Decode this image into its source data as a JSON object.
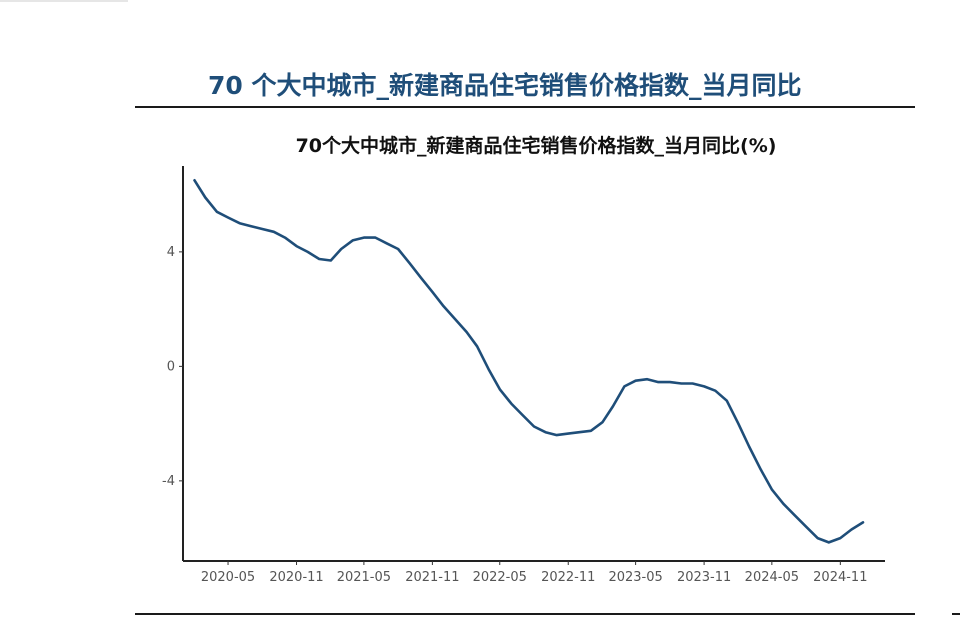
{
  "header": {
    "title": "70 个大中城市_新建商品住宅销售价格指数_当月同比"
  },
  "chart_data": {
    "type": "line",
    "title": "70个大中城市_新建商品住宅销售价格指数_当月同比(%)",
    "xlabel": "",
    "ylabel": "",
    "x_tick_labels": [
      "2020-05",
      "2020-11",
      "2021-05",
      "2021-11",
      "2022-05",
      "2022-11",
      "2023-05",
      "2023-11",
      "2024-05",
      "2024-11"
    ],
    "y_ticks": [
      -4,
      0,
      4
    ],
    "ylim": [
      -6.8,
      7.0
    ],
    "grid": false,
    "legend": "none",
    "color": "#1f4e79",
    "series": [
      {
        "x": [
          "2020-02",
          "2020-03",
          "2020-04",
          "2020-05",
          "2020-06",
          "2020-07",
          "2020-08",
          "2020-09",
          "2020-10",
          "2020-11",
          "2020-12",
          "2021-01",
          "2021-02",
          "2021-03",
          "2021-04",
          "2021-05",
          "2021-06",
          "2021-07",
          "2021-08",
          "2021-09",
          "2021-10",
          "2021-11",
          "2021-12",
          "2022-01",
          "2022-02",
          "2022-03",
          "2022-04",
          "2022-05",
          "2022-06",
          "2022-07",
          "2022-08",
          "2022-09",
          "2022-10",
          "2022-11",
          "2022-12",
          "2023-01",
          "2023-02",
          "2023-03",
          "2023-04",
          "2023-05",
          "2023-06",
          "2023-07",
          "2023-08",
          "2023-09",
          "2023-10",
          "2023-11",
          "2023-12",
          "2024-01",
          "2024-02",
          "2024-03",
          "2024-04",
          "2024-05",
          "2024-06",
          "2024-07",
          "2024-08",
          "2024-09",
          "2024-10",
          "2024-11",
          "2024-12",
          "2025-01"
        ],
        "values": [
          6.5,
          5.9,
          5.4,
          5.2,
          5.0,
          4.9,
          4.8,
          4.7,
          4.5,
          4.2,
          4.0,
          3.75,
          3.7,
          4.1,
          4.4,
          4.5,
          4.5,
          4.3,
          4.1,
          3.6,
          3.1,
          2.6,
          2.1,
          1.65,
          1.2,
          0.7,
          -0.1,
          -0.8,
          -1.3,
          -1.7,
          -2.1,
          -2.3,
          -2.4,
          -2.35,
          -2.3,
          -2.25,
          -1.95,
          -1.4,
          -0.7,
          -0.5,
          -0.45,
          -0.55,
          -0.55,
          -0.6,
          -0.6,
          -0.7,
          -0.85,
          -1.2,
          -2.0,
          -2.8,
          -3.6,
          -4.3,
          -4.8,
          -5.2,
          -5.6,
          -6.0,
          -6.15,
          -6.0,
          -5.7,
          -5.45
        ]
      }
    ]
  }
}
